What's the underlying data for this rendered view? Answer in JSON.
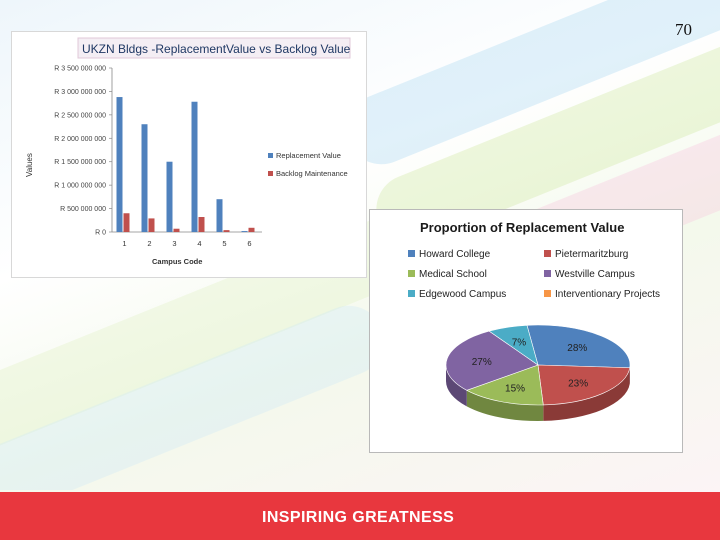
{
  "slide": {
    "number": "70",
    "footer": "INSPIRING GREATNESS"
  },
  "colors": {
    "replacement": "#4f81bd",
    "backlog": "#c0504d",
    "footer": "#e8373e"
  },
  "chart_data": [
    {
      "type": "bar",
      "title": "UKZN Bldgs -ReplacementValue vs Backlog Value",
      "xlabel": "Campus Code",
      "ylabel": "Values",
      "categories": [
        "1",
        "2",
        "3",
        "4",
        "5",
        "6"
      ],
      "y_tick_labels": [
        "R 0",
        "R 500 000 000",
        "R 1 000 000 000",
        "R 1 500 000 000",
        "R 2 000 000 000",
        "R 2 500 000 000",
        "R 3 000 000 000",
        "R 3 500 000 000"
      ],
      "ylim": [
        0,
        3500000000
      ],
      "legend_position": "right",
      "series": [
        {
          "name": "Replacement Value",
          "color": "#4f81bd",
          "values": [
            2880000000,
            2300000000,
            1500000000,
            2780000000,
            700000000,
            20000000
          ]
        },
        {
          "name": "Backlog Maintenance",
          "color": "#c0504d",
          "values": [
            400000000,
            290000000,
            70000000,
            320000000,
            40000000,
            90000000
          ]
        }
      ]
    },
    {
      "type": "pie",
      "title": "Proportion of Replacement Value",
      "legend_position": "top",
      "slices": [
        {
          "name": "Howard College",
          "value": 28,
          "label": "28%",
          "color": "#4f81bd"
        },
        {
          "name": "Pietermaritzburg",
          "value": 23,
          "label": "23%",
          "color": "#c0504d"
        },
        {
          "name": "Medical School",
          "value": 15,
          "label": "15%",
          "color": "#9bbb59"
        },
        {
          "name": "Westville Campus",
          "value": 27,
          "label": "27%",
          "color": "#8064a2"
        },
        {
          "name": "Edgewood Campus",
          "value": 7,
          "label": "7%",
          "color": "#4bacc6"
        },
        {
          "name": "Interventionary Projects",
          "value": 0,
          "label": "",
          "color": "#f79646"
        }
      ]
    }
  ]
}
